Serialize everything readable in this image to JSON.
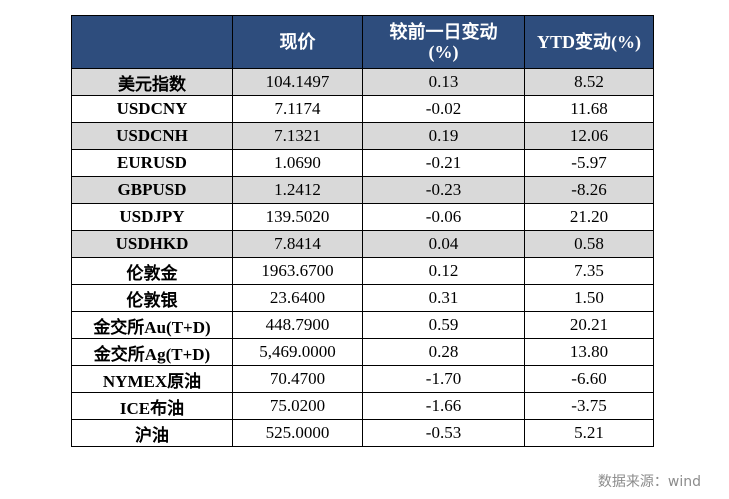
{
  "headers": {
    "name": "",
    "price": "现价",
    "change": "较前一日变动",
    "change_unit": "(%)",
    "ytd": "YTD变动(%)"
  },
  "rows": [
    {
      "name": "美元指数",
      "price": "104.1497",
      "change": "0.13",
      "ytd": "8.52"
    },
    {
      "name": "USDCNY",
      "price": "7.1174",
      "change": "-0.02",
      "ytd": "11.68"
    },
    {
      "name": "USDCNH",
      "price": "7.1321",
      "change": "0.19",
      "ytd": "12.06"
    },
    {
      "name": "EURUSD",
      "price": "1.0690",
      "change": "-0.21",
      "ytd": "-5.97"
    },
    {
      "name": "GBPUSD",
      "price": "1.2412",
      "change": "-0.23",
      "ytd": "-8.26"
    },
    {
      "name": "USDJPY",
      "price": "139.5020",
      "change": "-0.06",
      "ytd": "21.20"
    },
    {
      "name": "USDHKD",
      "price": "7.8414",
      "change": "0.04",
      "ytd": "0.58"
    },
    {
      "name": "伦敦金",
      "price": "1963.6700",
      "change": "0.12",
      "ytd": "7.35"
    },
    {
      "name": "伦敦银",
      "price": "23.6400",
      "change": "0.31",
      "ytd": "1.50"
    },
    {
      "name": "金交所Au(T+D)",
      "price": "448.7900",
      "change": "0.59",
      "ytd": "20.21"
    },
    {
      "name": "金交所Ag(T+D)",
      "price": "5,469.0000",
      "change": "0.28",
      "ytd": "13.80"
    },
    {
      "name": "NYMEX原油",
      "price": "70.4700",
      "change": "-1.70",
      "ytd": "-6.60"
    },
    {
      "name": "ICE布油",
      "price": "75.0200",
      "change": "-1.66",
      "ytd": "-3.75"
    },
    {
      "name": "沪油",
      "price": "525.0000",
      "change": "-0.53",
      "ytd": "5.21"
    }
  ],
  "colors": {
    "header_bg": "#2e4d7d",
    "negative": "#e8000b",
    "shade": "#d9d9d9"
  },
  "source": "数据来源：wind"
}
